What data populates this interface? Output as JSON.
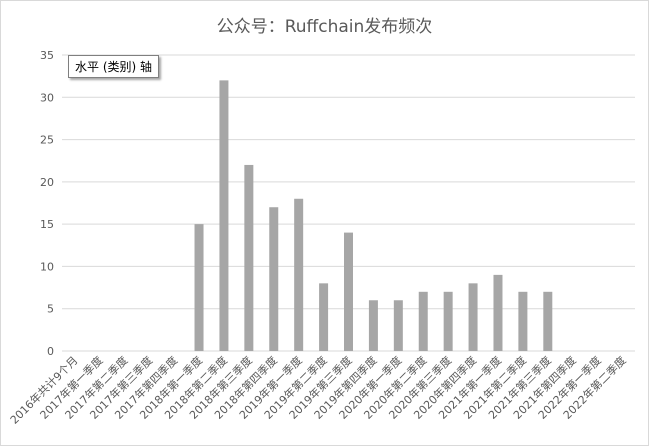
{
  "chart_data": {
    "type": "bar",
    "title": "公众号：Ruffchain发布频次",
    "categories": [
      "2016年共计9个月",
      "2017年第一季度",
      "2017年第二季度",
      "2017年第三季度",
      "2017年第四季度",
      "2018年第一季度",
      "2018年第二季度",
      "2018年第三季度",
      "2018年第四季度",
      "2019年第一季度",
      "2019年第二季度",
      "2019年第三季度",
      "2019年第四季度",
      "2020年第一季度",
      "2020年第二季度",
      "2020年第三季度",
      "2020年第四季度",
      "2021年第一季度",
      "2021年第二季度",
      "2021年第三季度",
      "2021年第四季度",
      "2022年第一季度",
      "2022年第二季度"
    ],
    "values": [
      0,
      0,
      0,
      0,
      0,
      15,
      32,
      22,
      17,
      18,
      8,
      14,
      6,
      6,
      7,
      7,
      8,
      9,
      7,
      7,
      0,
      0,
      0
    ],
    "ylim": [
      0,
      35
    ],
    "yticks": [
      0,
      5,
      10,
      15,
      20,
      25,
      30,
      35
    ],
    "xlabel": "",
    "ylabel": "",
    "grid": true,
    "legend": "none",
    "bar_color": "#a6a6a6",
    "grid_color": "#d9d9d9"
  },
  "tooltip": {
    "text": "水平 (类别) 轴"
  }
}
